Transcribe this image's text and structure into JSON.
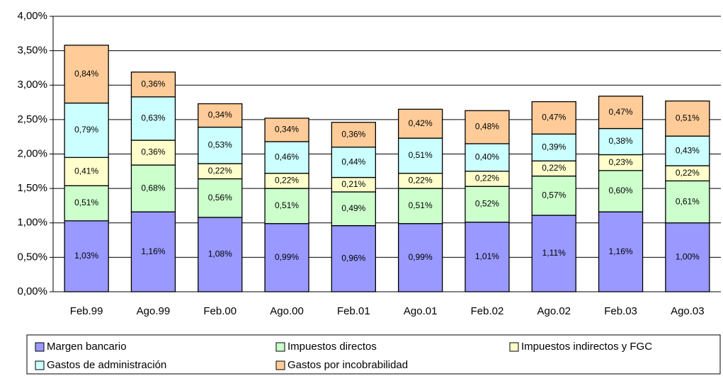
{
  "chart_data": {
    "type": "stacked_bar",
    "categories": [
      "Feb.99",
      "Ago.99",
      "Feb.00",
      "Ago.00",
      "Feb.01",
      "Ago.01",
      "Feb.02",
      "Ago.02",
      "Feb.03",
      "Ago.03"
    ],
    "series": [
      {
        "name": "Margen bancario",
        "color": "#9999ff",
        "values": [
          1.03,
          1.16,
          1.08,
          0.99,
          0.96,
          0.99,
          1.01,
          1.11,
          1.16,
          1.0
        ],
        "value_labels": [
          "1,03%",
          "1,16%",
          "1,08%",
          "0,99%",
          "0,96%",
          "0,99%",
          "1,01%",
          "1,11%",
          "1,16%",
          "1,00%"
        ]
      },
      {
        "name": "Impuestos directos",
        "color": "#ccffcc",
        "values": [
          0.51,
          0.68,
          0.56,
          0.51,
          0.49,
          0.51,
          0.52,
          0.57,
          0.6,
          0.61
        ],
        "value_labels": [
          "0,51%",
          "0,68%",
          "0,56%",
          "0,51%",
          "0,49%",
          "0,51%",
          "0,52%",
          "0,57%",
          "0,60%",
          "0,61%"
        ]
      },
      {
        "name": "Impuestos indirectos y FGC",
        "color": "#ffffcc",
        "values": [
          0.41,
          0.36,
          0.22,
          0.22,
          0.21,
          0.22,
          0.22,
          0.22,
          0.23,
          0.22
        ],
        "value_labels": [
          "0,41%",
          "0,36%",
          "0,22%",
          "0,22%",
          "0,21%",
          "0,22%",
          "0,22%",
          "0,22%",
          "0,23%",
          "0,22%"
        ]
      },
      {
        "name": "Gastos de administración",
        "color": "#ccffff",
        "values": [
          0.79,
          0.63,
          0.53,
          0.46,
          0.44,
          0.51,
          0.4,
          0.39,
          0.38,
          0.43
        ],
        "value_labels": [
          "0,79%",
          "0,63%",
          "0,53%",
          "0,46%",
          "0,44%",
          "0,51%",
          "0,40%",
          "0,39%",
          "0,38%",
          "0,43%"
        ]
      },
      {
        "name": "Gastos por incobrabilidad",
        "color": "#ffcc99",
        "values": [
          0.84,
          0.36,
          0.34,
          0.34,
          0.36,
          0.42,
          0.48,
          0.47,
          0.47,
          0.51
        ],
        "value_labels": [
          "0,84%",
          "0,36%",
          "0,34%",
          "0,34%",
          "0,36%",
          "0,42%",
          "0,48%",
          "0,47%",
          "0,47%",
          "0,51%"
        ]
      }
    ],
    "ylim": [
      0,
      4
    ],
    "yticks": [
      {
        "value": 0,
        "label": "0,00%"
      },
      {
        "value": 0.5,
        "label": "0,50%"
      },
      {
        "value": 1,
        "label": "1,00%"
      },
      {
        "value": 1.5,
        "label": "1,50%"
      },
      {
        "value": 2,
        "label": "2,00%"
      },
      {
        "value": 2.5,
        "label": "2,50%"
      },
      {
        "value": 3,
        "label": "3,00%"
      },
      {
        "value": 3.5,
        "label": "3,50%"
      },
      {
        "value": 4,
        "label": "4,00%"
      }
    ],
    "grid": true,
    "legend": "bottom"
  }
}
